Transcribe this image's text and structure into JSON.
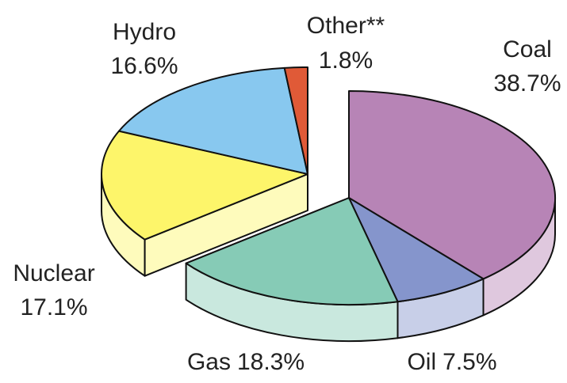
{
  "chart_data": {
    "type": "pie3d",
    "categories": [
      "Coal",
      "Oil",
      "Gas",
      "Nuclear",
      "Hydro",
      "Other**"
    ],
    "values": [
      38.7,
      7.5,
      18.3,
      17.1,
      16.6,
      1.8
    ],
    "value_labels": [
      "38.7%",
      "7.5%",
      "18.3%",
      "17.1%",
      "16.6%",
      "1.8%"
    ],
    "colors": [
      "#b784b6",
      "#8595cc",
      "#86cbb6",
      "#fdf56a",
      "#88c8ef",
      "#e05a37"
    ]
  }
}
